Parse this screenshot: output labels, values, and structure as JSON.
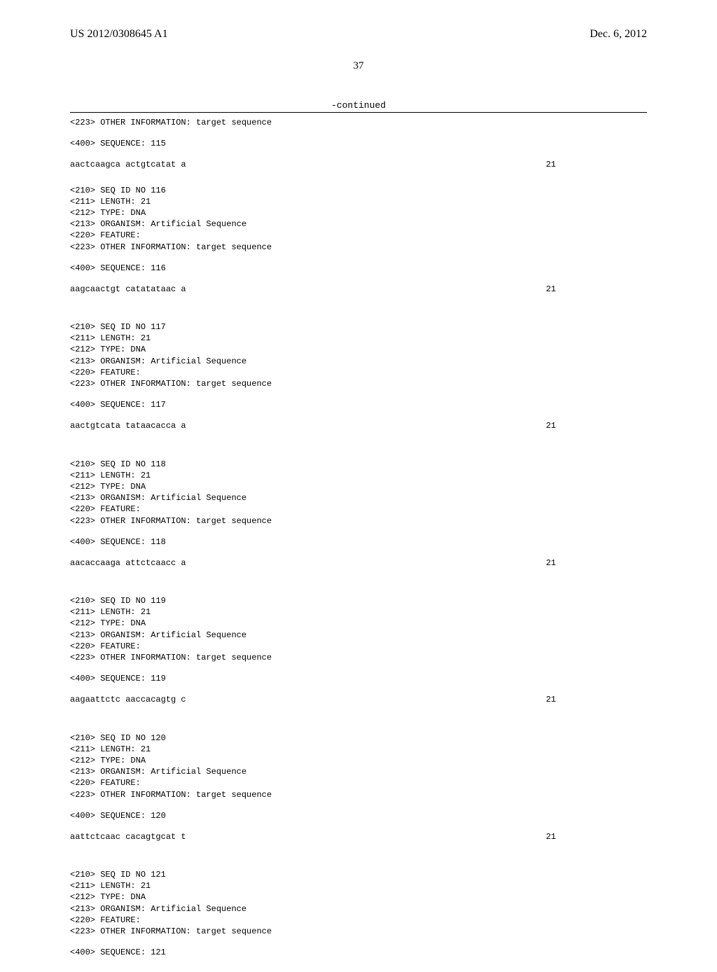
{
  "header": {
    "pub_number": "US 2012/0308645 A1",
    "pub_date": "Dec. 6, 2012"
  },
  "page_number": "37",
  "continued_label": "-continued",
  "trailing_seq": {
    "other_info_line": "<223> OTHER INFORMATION: target sequence",
    "seq_line": "<400> SEQUENCE: 115",
    "sequence": "aactcaagca actgtcatat a",
    "length_display": "21"
  },
  "blocks": [
    {
      "lines": [
        "<210> SEQ ID NO 116",
        "<211> LENGTH: 21",
        "<212> TYPE: DNA",
        "<213> ORGANISM: Artificial Sequence",
        "<220> FEATURE:",
        "<223> OTHER INFORMATION: target sequence"
      ],
      "seq_header": "<400> SEQUENCE: 116",
      "sequence": "aagcaactgt catatataac a",
      "length_display": "21"
    },
    {
      "lines": [
        "<210> SEQ ID NO 117",
        "<211> LENGTH: 21",
        "<212> TYPE: DNA",
        "<213> ORGANISM: Artificial Sequence",
        "<220> FEATURE:",
        "<223> OTHER INFORMATION: target sequence"
      ],
      "seq_header": "<400> SEQUENCE: 117",
      "sequence": "aactgtcata tataacacca a",
      "length_display": "21"
    },
    {
      "lines": [
        "<210> SEQ ID NO 118",
        "<211> LENGTH: 21",
        "<212> TYPE: DNA",
        "<213> ORGANISM: Artificial Sequence",
        "<220> FEATURE:",
        "<223> OTHER INFORMATION: target sequence"
      ],
      "seq_header": "<400> SEQUENCE: 118",
      "sequence": "aacaccaaga attctcaacc a",
      "length_display": "21"
    },
    {
      "lines": [
        "<210> SEQ ID NO 119",
        "<211> LENGTH: 21",
        "<212> TYPE: DNA",
        "<213> ORGANISM: Artificial Sequence",
        "<220> FEATURE:",
        "<223> OTHER INFORMATION: target sequence"
      ],
      "seq_header": "<400> SEQUENCE: 119",
      "sequence": "aagaattctc aaccacagtg c",
      "length_display": "21"
    },
    {
      "lines": [
        "<210> SEQ ID NO 120",
        "<211> LENGTH: 21",
        "<212> TYPE: DNA",
        "<213> ORGANISM: Artificial Sequence",
        "<220> FEATURE:",
        "<223> OTHER INFORMATION: target sequence"
      ],
      "seq_header": "<400> SEQUENCE: 120",
      "sequence": "aattctcaac cacagtgcat t",
      "length_display": "21"
    },
    {
      "lines": [
        "<210> SEQ ID NO 121",
        "<211> LENGTH: 21",
        "<212> TYPE: DNA",
        "<213> ORGANISM: Artificial Sequence",
        "<220> FEATURE:",
        "<223> OTHER INFORMATION: target sequence"
      ],
      "seq_header": "<400> SEQUENCE: 121",
      "sequence": null,
      "length_display": null
    }
  ]
}
